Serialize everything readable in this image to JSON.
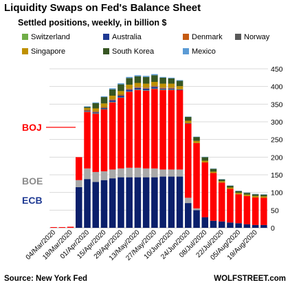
{
  "chart_data": {
    "type": "bar",
    "stacked": true,
    "title": "Liquidity Swaps on Fed's Balance Sheet",
    "subtitle": "Settled positions, weekly, in billion $",
    "source": "Source: New York Fed",
    "watermark": "WOLFSTREET.com",
    "ylim": [
      0,
      450
    ],
    "yticks": [
      0,
      50,
      100,
      150,
      200,
      250,
      300,
      350,
      400,
      450
    ],
    "y_axis_position": "right",
    "grid": true,
    "legend_position": "top",
    "x_tick_labels": [
      "04/Mar/2020",
      "18/Mar/2020",
      "01/Apr/2020",
      "15/Apr/2020",
      "29/Apr/2020",
      "13/May/2020",
      "27/May/2020",
      "10/Jun/2020",
      "24/Jun/2020",
      "08/Jul/2020",
      "22/Jul/2020",
      "05/Aug/2020",
      "19/Aug/2020"
    ],
    "categories": [
      "04/Mar/2020",
      "11/Mar/2020",
      "18/Mar/2020",
      "25/Mar/2020",
      "01/Apr/2020",
      "08/Apr/2020",
      "15/Apr/2020",
      "22/Apr/2020",
      "29/Apr/2020",
      "06/May/2020",
      "13/May/2020",
      "20/May/2020",
      "27/May/2020",
      "03/Jun/2020",
      "10/Jun/2020",
      "17/Jun/2020",
      "24/Jun/2020",
      "01/Jul/2020",
      "08/Jul/2020",
      "15/Jul/2020",
      "22/Jul/2020",
      "29/Jul/2020",
      "05/Aug/2020",
      "12/Aug/2020",
      "19/Aug/2020",
      "26/Aug/2020"
    ],
    "series": [
      {
        "name": "ECB",
        "color": "#0b1f6b",
        "values": [
          0,
          0,
          0,
          115,
          138,
          130,
          135,
          140,
          143,
          143,
          143,
          143,
          143,
          145,
          145,
          145,
          70,
          50,
          30,
          20,
          18,
          15,
          13,
          10,
          8,
          8
        ]
      },
      {
        "name": "BOE",
        "color": "#a9a9a9",
        "values": [
          0,
          0,
          0,
          20,
          30,
          28,
          25,
          25,
          25,
          27,
          27,
          25,
          25,
          20,
          20,
          20,
          15,
          5,
          0,
          0,
          0,
          0,
          0,
          0,
          0,
          0
        ]
      },
      {
        "name": "BOJ",
        "color": "#ff0000",
        "values": [
          2,
          2,
          3,
          65,
          160,
          165,
          175,
          190,
          200,
          215,
          220,
          220,
          225,
          225,
          225,
          225,
          210,
          185,
          155,
          135,
          110,
          95,
          82,
          80,
          78,
          77
        ]
      },
      {
        "name": "Switzerland",
        "color": "#70ad47",
        "values": [
          0,
          0,
          0,
          0,
          1,
          1,
          1,
          1,
          1,
          1,
          1,
          1,
          1,
          1,
          1,
          0,
          0,
          0,
          0,
          0,
          0,
          0,
          0,
          0,
          0,
          0
        ]
      },
      {
        "name": "Australia",
        "color": "#1f3a93",
        "values": [
          0,
          0,
          0,
          0,
          2,
          3,
          3,
          5,
          5,
          5,
          5,
          5,
          5,
          3,
          3,
          2,
          1,
          0,
          0,
          0,
          0,
          0,
          0,
          0,
          0,
          0
        ]
      },
      {
        "name": "Denmark",
        "color": "#c55a11",
        "values": [
          0,
          0,
          0,
          0,
          2,
          2,
          2,
          2,
          2,
          2,
          2,
          2,
          2,
          2,
          2,
          0,
          0,
          0,
          0,
          0,
          0,
          0,
          0,
          0,
          0,
          0
        ]
      },
      {
        "name": "Norway",
        "color": "#595959",
        "values": [
          0,
          0,
          0,
          0,
          1,
          1,
          1,
          1,
          1,
          1,
          1,
          1,
          1,
          1,
          1,
          0,
          0,
          0,
          0,
          0,
          0,
          0,
          0,
          0,
          0,
          0
        ]
      },
      {
        "name": "Singapore",
        "color": "#bf9000",
        "values": [
          0,
          0,
          0,
          0,
          5,
          8,
          10,
          10,
          10,
          11,
          11,
          11,
          11,
          11,
          11,
          9,
          7,
          6,
          5,
          4,
          4,
          4,
          4,
          4,
          4,
          4
        ]
      },
      {
        "name": "South Korea",
        "color": "#375623",
        "values": [
          0,
          0,
          0,
          0,
          3,
          15,
          18,
          18,
          19,
          19,
          19,
          19,
          19,
          17,
          15,
          15,
          11,
          11,
          10,
          8,
          5,
          5,
          5,
          5,
          5,
          5
        ]
      },
      {
        "name": "Mexico",
        "color": "#5b9bd5",
        "values": [
          0,
          0,
          0,
          0,
          2,
          2,
          2,
          3,
          3,
          3,
          3,
          3,
          3,
          2,
          2,
          2,
          1,
          1,
          1,
          1,
          1,
          1,
          1,
          1,
          1,
          1
        ]
      }
    ],
    "annotations": [
      {
        "text": "BOJ",
        "color": "#ff0000",
        "series": "BOJ"
      },
      {
        "text": "BOE",
        "color": "#8c8c8c",
        "series": "BOE"
      },
      {
        "text": "ECB",
        "color": "#1f3a93",
        "series": "ECB"
      }
    ]
  }
}
